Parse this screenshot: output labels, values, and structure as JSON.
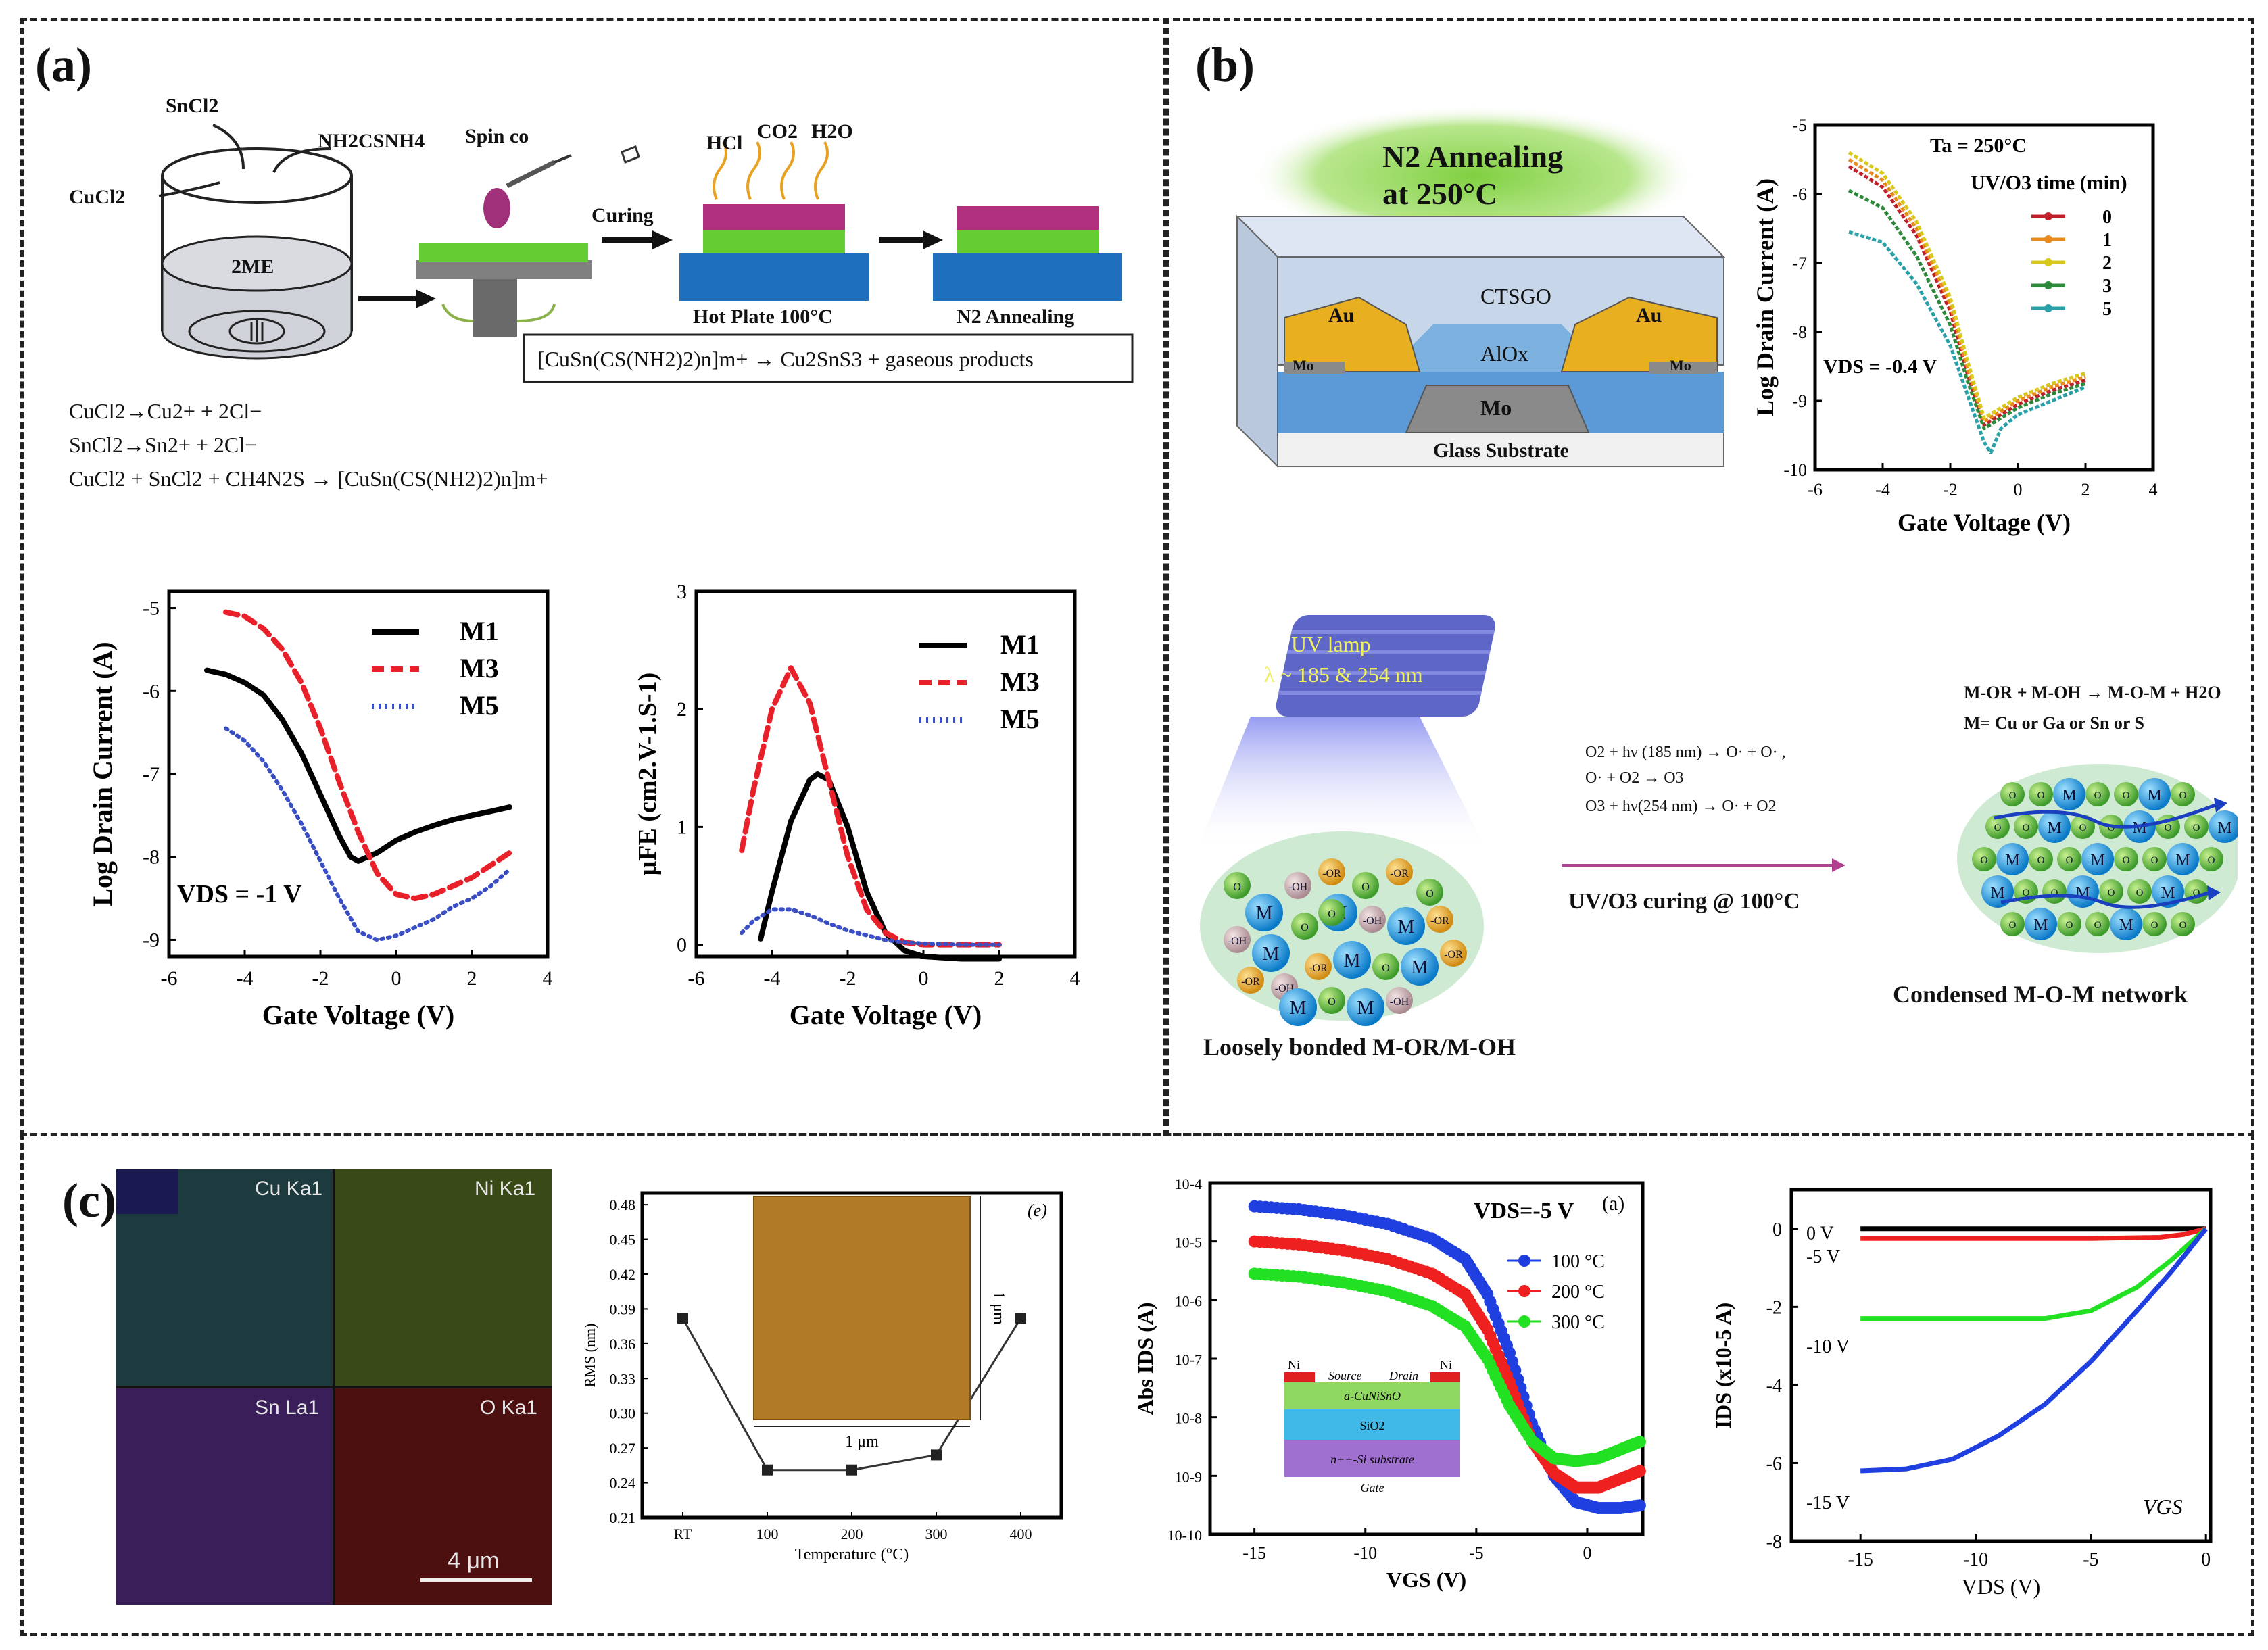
{
  "panels": {
    "a": "(a)",
    "b": "(b)",
    "c": "(c)"
  },
  "panel_a": {
    "reagents": {
      "sncl2": "SnCl2",
      "thiourea": "NH2CSNH4",
      "cucl2": "CuCl2",
      "solvent": "2ME"
    },
    "spin_label": "Spin co",
    "curing_label": "Curing",
    "gases": [
      "HCl",
      "CO2",
      "H2O"
    ],
    "hotplate_label": "Hot Plate 100°C",
    "annealing_label": "N2 Annealing",
    "reaction_box": "[CuSn(CS(NH2)2)n]m+ → Cu2SnS3 + gaseous products",
    "equations": [
      "CuCl2→Cu2+ + 2Cl−",
      "SnCl2→Sn2+ + 2Cl−",
      "CuCl2 + SnCl2 + CH4N2S → [CuSn(CS(NH2)2)n]m+"
    ]
  },
  "panel_b": {
    "anneal_label_1": "N2 Annealing",
    "anneal_label_2": "at 250°C",
    "layers": {
      "ctsgo": "CTSGO",
      "au": "Au",
      "alox": "AlOx",
      "mo": "Mo",
      "glass": "Glass Substrate"
    },
    "uv_lamp_1": "UV lamp",
    "uv_lamp_2": "λ ~ 185 & 254 nm",
    "reactions": [
      "O2 + hν (185 nm) → O· + O· ,",
      "O· + O2 → O3",
      "O3 + hν(254 nm) → O· + O2"
    ],
    "curing_label": "UV/O3 curing @ 100°C",
    "condense_eq_1": "M-OR + M-OH → M-O-M + H2O",
    "condense_eq_2": "M= Cu or Ga or Sn or S",
    "left_caption": "Loosely bonded M-OR/M-OH",
    "right_caption": "Condensed M-O-M network",
    "sphere_labels": {
      "M": "M",
      "O": "O",
      "OH": "-OH",
      "OR": "-OR"
    }
  },
  "panel_c": {
    "eds_labels": [
      "Cu Ka1",
      "Ni Ka1",
      "Sn La1",
      "O Ka1"
    ],
    "scale_bar": "4 μm",
    "afm_scale_x": "1 μm",
    "afm_scale_y": "1 μm",
    "afm_tag": "(e)",
    "inset_device": {
      "ni_left": "Ni",
      "source": "Source",
      "drain": "Drain",
      "ni_right": "Ni",
      "channel": "a-CuNiSnO",
      "oxide": "SiO2",
      "substrate": "n++-Si substrate",
      "gate": "Gate"
    }
  },
  "colors": {
    "m1": "#000000",
    "m3": "#e8202a",
    "m5": "#3a4fc4",
    "uv0": "#c0202a",
    "uv1": "#e88a1e",
    "uv2": "#d8c81c",
    "uv3": "#2c8a3a",
    "uv4": "#2aa0a8",
    "c100": "#1f3fe0",
    "c200": "#ee2020",
    "c300": "#22e022",
    "ctsgo": "#c8d6ea",
    "au": "#e8b020",
    "alox": "#5b9ad6",
    "glass": "#f0f0f0",
    "afm": "#b07a26"
  },
  "chart_data": [
    {
      "id": "a-transfer",
      "type": "line",
      "title": "",
      "xlabel": "Gate Voltage (V)",
      "ylabel": "Log Drain Current (A)",
      "xlim": [
        -6,
        4
      ],
      "ylim": [
        -9.2,
        -4.8
      ],
      "xticks": [
        -6,
        -4,
        -2,
        0,
        2,
        4
      ],
      "yticks": [
        -5,
        -6,
        -7,
        -8,
        -9
      ],
      "annotation": "VDS = -1 V",
      "legend": "top-right",
      "series": [
        {
          "name": "M1",
          "style": "solid",
          "x": [
            -5,
            -4.5,
            -4,
            -3.5,
            -3,
            -2.5,
            -2,
            -1.5,
            -1.2,
            -1,
            -0.5,
            0,
            0.5,
            1,
            1.5,
            2,
            2.5,
            3
          ],
          "y": [
            -5.75,
            -5.8,
            -5.9,
            -6.05,
            -6.35,
            -6.75,
            -7.25,
            -7.75,
            -8.0,
            -8.05,
            -7.95,
            -7.8,
            -7.7,
            -7.62,
            -7.55,
            -7.5,
            -7.45,
            -7.4
          ]
        },
        {
          "name": "M3",
          "style": "dashed",
          "x": [
            -4.5,
            -4,
            -3.5,
            -3,
            -2.5,
            -2,
            -1.5,
            -1,
            -0.5,
            0,
            0.5,
            1,
            1.5,
            2,
            2.5,
            3
          ],
          "y": [
            -5.05,
            -5.1,
            -5.25,
            -5.5,
            -5.9,
            -6.45,
            -7.1,
            -7.7,
            -8.2,
            -8.45,
            -8.5,
            -8.45,
            -8.35,
            -8.25,
            -8.1,
            -7.95
          ]
        },
        {
          "name": "M5",
          "style": "dotted",
          "x": [
            -4.5,
            -4,
            -3.5,
            -3,
            -2.5,
            -2,
            -1.5,
            -1,
            -0.5,
            0,
            0.5,
            1,
            1.5,
            2,
            2.5,
            3
          ],
          "y": [
            -6.45,
            -6.6,
            -6.85,
            -7.2,
            -7.6,
            -8.05,
            -8.5,
            -8.9,
            -9.0,
            -8.95,
            -8.85,
            -8.75,
            -8.6,
            -8.5,
            -8.35,
            -8.15
          ]
        }
      ]
    },
    {
      "id": "a-mobility",
      "type": "line",
      "title": "",
      "xlabel": "Gate Voltage (V)",
      "ylabel": "μFE (cm2.V-1.S-1)",
      "xlim": [
        -6,
        4
      ],
      "ylim": [
        -0.1,
        3
      ],
      "xticks": [
        -6,
        -4,
        -2,
        0,
        2,
        4
      ],
      "yticks": [
        0,
        1,
        2,
        3
      ],
      "legend": "top-right",
      "series": [
        {
          "name": "M1",
          "style": "solid",
          "x": [
            -4.3,
            -4,
            -3.5,
            -3,
            -2.8,
            -2.5,
            -2,
            -1.5,
            -1,
            -0.5,
            0,
            1,
            2
          ],
          "y": [
            0.05,
            0.45,
            1.05,
            1.4,
            1.45,
            1.4,
            1.0,
            0.45,
            0.1,
            -0.05,
            -0.1,
            -0.12,
            -0.12
          ]
        },
        {
          "name": "M3",
          "style": "dashed",
          "x": [
            -4.8,
            -4.5,
            -4,
            -3.5,
            -3,
            -2.5,
            -2,
            -1.5,
            -1,
            -0.5,
            0,
            1,
            2
          ],
          "y": [
            0.8,
            1.3,
            2.0,
            2.35,
            2.05,
            1.4,
            0.75,
            0.3,
            0.1,
            0.02,
            0.0,
            0.0,
            0.0
          ]
        },
        {
          "name": "M5",
          "style": "dotted",
          "x": [
            -4.8,
            -4.5,
            -4,
            -3.5,
            -3,
            -2.5,
            -2,
            -1.5,
            -1,
            -0.5,
            0,
            1,
            2
          ],
          "y": [
            0.1,
            0.2,
            0.3,
            0.3,
            0.25,
            0.18,
            0.12,
            0.08,
            0.04,
            0.02,
            0.01,
            0.0,
            0.0
          ]
        }
      ]
    },
    {
      "id": "b-transfer",
      "type": "line",
      "title": "Ta = 250°C",
      "xlabel": "Gate Voltage (V)",
      "ylabel": "Log Drain Current (A)",
      "xlim": [
        -6,
        4
      ],
      "ylim": [
        -10,
        -5
      ],
      "xticks": [
        -6,
        -4,
        -2,
        0,
        2,
        4
      ],
      "yticks": [
        -5,
        -6,
        -7,
        -8,
        -9,
        -10
      ],
      "annotation": "VDS = -0.4 V",
      "legend_title": "UV/O3 time (min)",
      "legend": "top-right",
      "series": [
        {
          "name": "0",
          "x": [
            -5,
            -4,
            -3,
            -2,
            -1.5,
            -1,
            -0.5,
            0,
            1,
            2
          ],
          "y": [
            -5.6,
            -5.9,
            -6.6,
            -7.7,
            -8.6,
            -9.35,
            -9.2,
            -9.05,
            -8.85,
            -8.7
          ]
        },
        {
          "name": "1",
          "x": [
            -5,
            -4,
            -3,
            -2,
            -1.5,
            -1,
            -0.5,
            0,
            1,
            2
          ],
          "y": [
            -5.5,
            -5.8,
            -6.5,
            -7.6,
            -8.5,
            -9.3,
            -9.15,
            -9.0,
            -8.8,
            -8.65
          ]
        },
        {
          "name": "2",
          "x": [
            -5,
            -4,
            -3,
            -2,
            -1.5,
            -1,
            -0.5,
            0,
            1,
            2
          ],
          "y": [
            -5.4,
            -5.7,
            -6.4,
            -7.5,
            -8.4,
            -9.25,
            -9.1,
            -8.95,
            -8.75,
            -8.6
          ]
        },
        {
          "name": "3",
          "x": [
            -5,
            -4,
            -3,
            -2,
            -1.5,
            -1,
            -0.5,
            0,
            1,
            2
          ],
          "y": [
            -5.95,
            -6.2,
            -6.9,
            -7.9,
            -8.7,
            -9.4,
            -9.25,
            -9.1,
            -8.9,
            -8.75
          ]
        },
        {
          "name": "5",
          "x": [
            -5,
            -4,
            -3,
            -2,
            -1.5,
            -1,
            -0.8,
            -0.5,
            0,
            1,
            2
          ],
          "y": [
            -6.55,
            -6.7,
            -7.3,
            -8.2,
            -8.9,
            -9.6,
            -9.75,
            -9.4,
            -9.2,
            -9.0,
            -8.8
          ]
        }
      ]
    },
    {
      "id": "c-rms",
      "type": "line",
      "title": "",
      "xlabel": "Temperature (°C)",
      "ylabel": "RMS (nm)",
      "categories": [
        "RT",
        "100",
        "200",
        "300",
        "400"
      ],
      "yticks": [
        0.21,
        0.24,
        0.27,
        0.3,
        0.33,
        0.36,
        0.39,
        0.42,
        0.45,
        0.48
      ],
      "ylim": [
        0.21,
        0.49
      ],
      "values": [
        0.382,
        0.251,
        0.251,
        0.264,
        0.382
      ]
    },
    {
      "id": "c-transfer",
      "type": "line",
      "title": "(a)",
      "xlabel": "VGS (V)",
      "ylabel": "Abs IDS (A)",
      "xlim": [
        -17,
        2.5
      ],
      "xticks": [
        -15,
        -10,
        -5,
        0
      ],
      "ylim_log": [
        -10,
        -4
      ],
      "yticks": [
        "10-4",
        "10-5",
        "10-6",
        "10-7",
        "10-8",
        "10-9",
        "10-10"
      ],
      "annotation": "VDS=-5 V",
      "legend": "top-right",
      "series": [
        {
          "name": "100 °C",
          "x": [
            -15,
            -13,
            -11,
            -9,
            -7,
            -5.5,
            -4.5,
            -3.5,
            -2.5,
            -1.5,
            -0.5,
            0.5,
            1.5,
            2.5
          ],
          "y": [
            -4.4,
            -4.45,
            -4.55,
            -4.7,
            -4.95,
            -5.3,
            -5.9,
            -6.9,
            -8.1,
            -9.0,
            -9.45,
            -9.55,
            -9.55,
            -9.5
          ]
        },
        {
          "name": "200 °C",
          "x": [
            -15,
            -13,
            -11,
            -9,
            -7,
            -5.5,
            -4.5,
            -3.5,
            -2.5,
            -1.5,
            -0.5,
            0.5,
            1.5,
            2.5
          ],
          "y": [
            -5.0,
            -5.05,
            -5.15,
            -5.3,
            -5.55,
            -5.9,
            -6.5,
            -7.4,
            -8.4,
            -8.95,
            -9.2,
            -9.2,
            -9.05,
            -8.9
          ]
        },
        {
          "name": "300 °C",
          "x": [
            -15,
            -13,
            -11,
            -9,
            -7,
            -5.5,
            -4.5,
            -3.5,
            -2.5,
            -1.5,
            -0.5,
            0.5,
            1.5,
            2.5
          ],
          "y": [
            -5.55,
            -5.6,
            -5.7,
            -5.85,
            -6.1,
            -6.45,
            -7.0,
            -7.8,
            -8.4,
            -8.7,
            -8.75,
            -8.7,
            -8.55,
            -8.4
          ]
        }
      ]
    },
    {
      "id": "c-output",
      "type": "line",
      "title": "",
      "xlabel": "VDS (V)",
      "ylabel": "IDS (x10-5 A)",
      "xlim": [
        -18,
        0.2
      ],
      "xticks": [
        -15,
        -10,
        -5,
        0
      ],
      "ylim": [
        -8,
        1
      ],
      "yticks": [
        0,
        -2,
        -4,
        -6,
        -8
      ],
      "legend_title": "VGS",
      "series": [
        {
          "name": "0 V",
          "x": [
            -15,
            -10,
            -5,
            0
          ],
          "y": [
            0.0,
            0.0,
            0.0,
            0.0
          ]
        },
        {
          "name": "-5 V",
          "x": [
            -15,
            -10,
            -5,
            -2,
            -1,
            0
          ],
          "y": [
            -0.25,
            -0.25,
            -0.25,
            -0.22,
            -0.15,
            0.0
          ]
        },
        {
          "name": "-10 V",
          "x": [
            -15,
            -10,
            -7,
            -5,
            -3,
            -1.5,
            0
          ],
          "y": [
            -2.3,
            -2.3,
            -2.3,
            -2.1,
            -1.5,
            -0.8,
            0.0
          ]
        },
        {
          "name": "-15 V",
          "x": [
            -15,
            -13,
            -11,
            -9,
            -7,
            -5,
            -3,
            -1.5,
            0
          ],
          "y": [
            -6.2,
            -6.15,
            -5.9,
            -5.3,
            -4.5,
            -3.4,
            -2.1,
            -1.1,
            0.0
          ]
        }
      ]
    }
  ]
}
